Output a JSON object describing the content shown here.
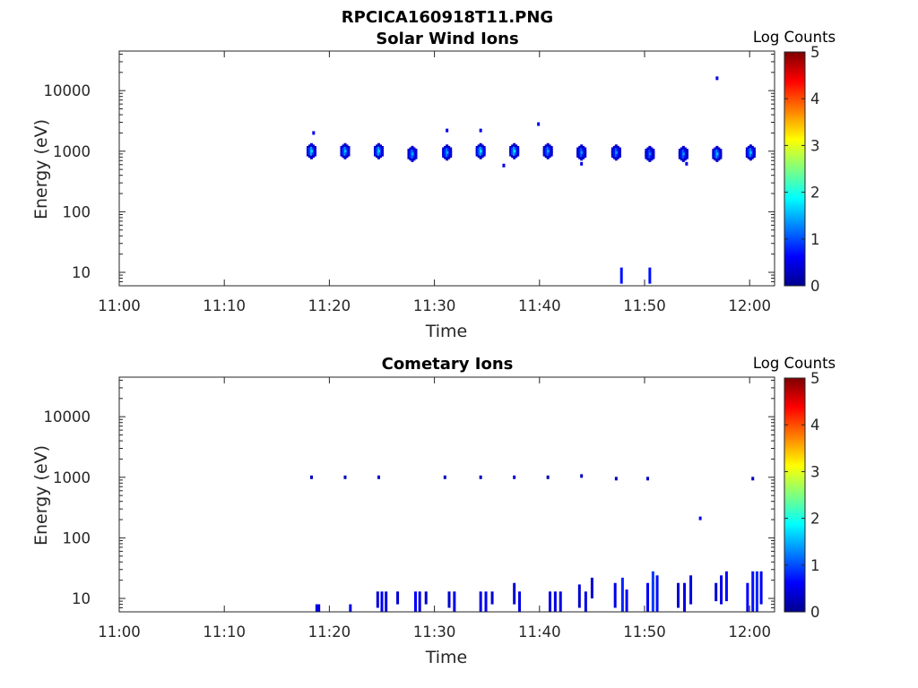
{
  "figure_title": "RPCICA160918T11.PNG",
  "chart_data": [
    {
      "type": "heatmap",
      "title": "Solar Wind Ions",
      "xlabel": "Time",
      "ylabel": "Energy (eV)",
      "xticks": [
        "11:00",
        "11:10",
        "11:20",
        "11:30",
        "11:40",
        "11:50",
        "12:00"
      ],
      "xlim": [
        "11:00",
        "12:02"
      ],
      "yscale": "log",
      "yticks": [
        "10",
        "100",
        "1000",
        "10000"
      ],
      "ylim": [
        6,
        45000
      ],
      "colorbar": {
        "label": "Log Counts",
        "ticks": [
          "0",
          "1",
          "2",
          "3",
          "4",
          "5"
        ],
        "range": [
          0,
          5
        ],
        "colormap": "jet"
      },
      "blobs": [
        {
          "time": "11:18.3",
          "energy": 1000,
          "peak": 1.4
        },
        {
          "time": "11:21.5",
          "energy": 1000,
          "peak": 1.3
        },
        {
          "time": "11:24.7",
          "energy": 1000,
          "peak": 1.4
        },
        {
          "time": "11:27.9",
          "energy": 900,
          "peak": 1.2
        },
        {
          "time": "11:31.2",
          "energy": 950,
          "peak": 1.2
        },
        {
          "time": "11:34.4",
          "energy": 1000,
          "peak": 1.5
        },
        {
          "time": "11:37.6",
          "energy": 1000,
          "peak": 1.5
        },
        {
          "time": "11:40.8",
          "energy": 1000,
          "peak": 1.2
        },
        {
          "time": "11:44.0",
          "energy": 950,
          "peak": 1.1
        },
        {
          "time": "11:47.3",
          "energy": 950,
          "peak": 1.1
        },
        {
          "time": "11:50.5",
          "energy": 900,
          "peak": 1.0
        },
        {
          "time": "11:53.7",
          "energy": 900,
          "peak": 1.1
        },
        {
          "time": "11:56.9",
          "energy": 900,
          "peak": 1.3
        },
        {
          "time": "12:00.1",
          "energy": 950,
          "peak": 1.3
        }
      ],
      "points": [
        {
          "time": "11:18.5",
          "energy": 2000,
          "value": 0.5
        },
        {
          "time": "11:31.2",
          "energy": 2200,
          "value": 0.5
        },
        {
          "time": "11:34.4",
          "energy": 2200,
          "value": 0.5
        },
        {
          "time": "11:36.6",
          "energy": 580,
          "value": 0.5
        },
        {
          "time": "11:39.9",
          "energy": 2800,
          "value": 0.6
        },
        {
          "time": "11:44.0",
          "energy": 620,
          "value": 0.5
        },
        {
          "time": "11:54.0",
          "energy": 620,
          "value": 0.5
        },
        {
          "time": "11:56.9",
          "energy": 16000,
          "value": 0.5
        }
      ],
      "bars": [
        {
          "time": "11:47.8",
          "e_min": 6.5,
          "e_max": 12,
          "value": 0.7
        },
        {
          "time": "11:50.5",
          "e_min": 6.5,
          "e_max": 12,
          "value": 0.7
        }
      ]
    },
    {
      "type": "heatmap",
      "title": "Cometary Ions",
      "xlabel": "Time",
      "ylabel": "Energy (eV)",
      "xticks": [
        "11:00",
        "11:10",
        "11:20",
        "11:30",
        "11:40",
        "11:50",
        "12:00"
      ],
      "xlim": [
        "11:00",
        "12:02"
      ],
      "yscale": "log",
      "yticks": [
        "10",
        "100",
        "1000",
        "10000"
      ],
      "ylim": [
        6,
        45000
      ],
      "colorbar": {
        "label": "Log Counts",
        "ticks": [
          "0",
          "1",
          "2",
          "3",
          "4",
          "5"
        ],
        "range": [
          0,
          5
        ],
        "colormap": "jet"
      },
      "points": [
        {
          "time": "11:18.3",
          "energy": 1000,
          "value": 0.3
        },
        {
          "time": "11:21.5",
          "energy": 1000,
          "value": 0.3
        },
        {
          "time": "11:24.7",
          "energy": 1000,
          "value": 0.4
        },
        {
          "time": "11:31.0",
          "energy": 1000,
          "value": 0.3
        },
        {
          "time": "11:34.4",
          "energy": 1000,
          "value": 0.3
        },
        {
          "time": "11:37.6",
          "energy": 1000,
          "value": 0.4
        },
        {
          "time": "11:40.8",
          "energy": 1000,
          "value": 0.3
        },
        {
          "time": "11:44.0",
          "energy": 1050,
          "value": 0.3
        },
        {
          "time": "11:47.3",
          "energy": 950,
          "value": 0.3
        },
        {
          "time": "11:50.3",
          "energy": 950,
          "value": 0.3
        },
        {
          "time": "11:55.3",
          "energy": 210,
          "value": 0.5
        },
        {
          "time": "12:00.3",
          "energy": 950,
          "value": 0.3
        }
      ],
      "bars": [
        {
          "time": "11:18.8",
          "e_min": 6,
          "e_max": 8,
          "value": 0.5
        },
        {
          "time": "11:19.0",
          "e_min": 6,
          "e_max": 8,
          "value": 0.5
        },
        {
          "time": "11:22.0",
          "e_min": 6,
          "e_max": 8,
          "value": 0.5
        },
        {
          "time": "11:24.6",
          "e_min": 7,
          "e_max": 13,
          "value": 0.4
        },
        {
          "time": "11:25.0",
          "e_min": 6,
          "e_max": 13,
          "value": 0.6
        },
        {
          "time": "11:25.4",
          "e_min": 6,
          "e_max": 13,
          "value": 0.5
        },
        {
          "time": "11:26.5",
          "e_min": 8,
          "e_max": 13,
          "value": 0.4
        },
        {
          "time": "11:28.2",
          "e_min": 6,
          "e_max": 13,
          "value": 0.6
        },
        {
          "time": "11:28.6",
          "e_min": 6,
          "e_max": 13,
          "value": 0.5
        },
        {
          "time": "11:29.2",
          "e_min": 8,
          "e_max": 13,
          "value": 0.4
        },
        {
          "time": "11:31.4",
          "e_min": 7,
          "e_max": 13,
          "value": 0.4
        },
        {
          "time": "11:31.9",
          "e_min": 6,
          "e_max": 13,
          "value": 0.5
        },
        {
          "time": "11:34.4",
          "e_min": 6,
          "e_max": 13,
          "value": 0.5
        },
        {
          "time": "11:34.9",
          "e_min": 6,
          "e_max": 13,
          "value": 0.6
        },
        {
          "time": "11:35.5",
          "e_min": 8,
          "e_max": 13,
          "value": 0.4
        },
        {
          "time": "11:37.6",
          "e_min": 8,
          "e_max": 18,
          "value": 0.4
        },
        {
          "time": "11:38.1",
          "e_min": 6,
          "e_max": 13,
          "value": 0.5
        },
        {
          "time": "11:41.0",
          "e_min": 6,
          "e_max": 13,
          "value": 0.5
        },
        {
          "time": "11:41.5",
          "e_min": 6,
          "e_max": 13,
          "value": 0.5
        },
        {
          "time": "11:42.0",
          "e_min": 6,
          "e_max": 13,
          "value": 0.5
        },
        {
          "time": "11:43.8",
          "e_min": 7,
          "e_max": 17,
          "value": 0.4
        },
        {
          "time": "11:44.4",
          "e_min": 6,
          "e_max": 13,
          "value": 0.5
        },
        {
          "time": "11:45.0",
          "e_min": 10,
          "e_max": 22,
          "value": 0.4
        },
        {
          "time": "11:47.2",
          "e_min": 7,
          "e_max": 18,
          "value": 0.5
        },
        {
          "time": "11:47.9",
          "e_min": 6,
          "e_max": 22,
          "value": 0.8
        },
        {
          "time": "11:48.3",
          "e_min": 6,
          "e_max": 14,
          "value": 0.6
        },
        {
          "time": "11:50.3",
          "e_min": 6,
          "e_max": 18,
          "value": 0.6
        },
        {
          "time": "11:50.8",
          "e_min": 6,
          "e_max": 28,
          "value": 0.9
        },
        {
          "time": "11:51.2",
          "e_min": 6,
          "e_max": 24,
          "value": 0.7
        },
        {
          "time": "11:53.2",
          "e_min": 7,
          "e_max": 18,
          "value": 0.4
        },
        {
          "time": "11:53.8",
          "e_min": 6,
          "e_max": 18,
          "value": 0.5
        },
        {
          "time": "11:54.4",
          "e_min": 8,
          "e_max": 24,
          "value": 0.5
        },
        {
          "time": "11:56.8",
          "e_min": 9,
          "e_max": 18,
          "value": 0.4
        },
        {
          "time": "11:57.3",
          "e_min": 8,
          "e_max": 24,
          "value": 0.5
        },
        {
          "time": "11:57.8",
          "e_min": 9,
          "e_max": 28,
          "value": 0.6
        },
        {
          "time": "11:59.8",
          "e_min": 6,
          "e_max": 18,
          "value": 0.6
        },
        {
          "time": "12:00.3",
          "e_min": 6,
          "e_max": 28,
          "value": 0.7
        },
        {
          "time": "12:00.7",
          "e_min": 6,
          "e_max": 28,
          "value": 0.8
        },
        {
          "time": "12:01.1",
          "e_min": 8,
          "e_max": 28,
          "value": 0.6
        }
      ]
    }
  ]
}
